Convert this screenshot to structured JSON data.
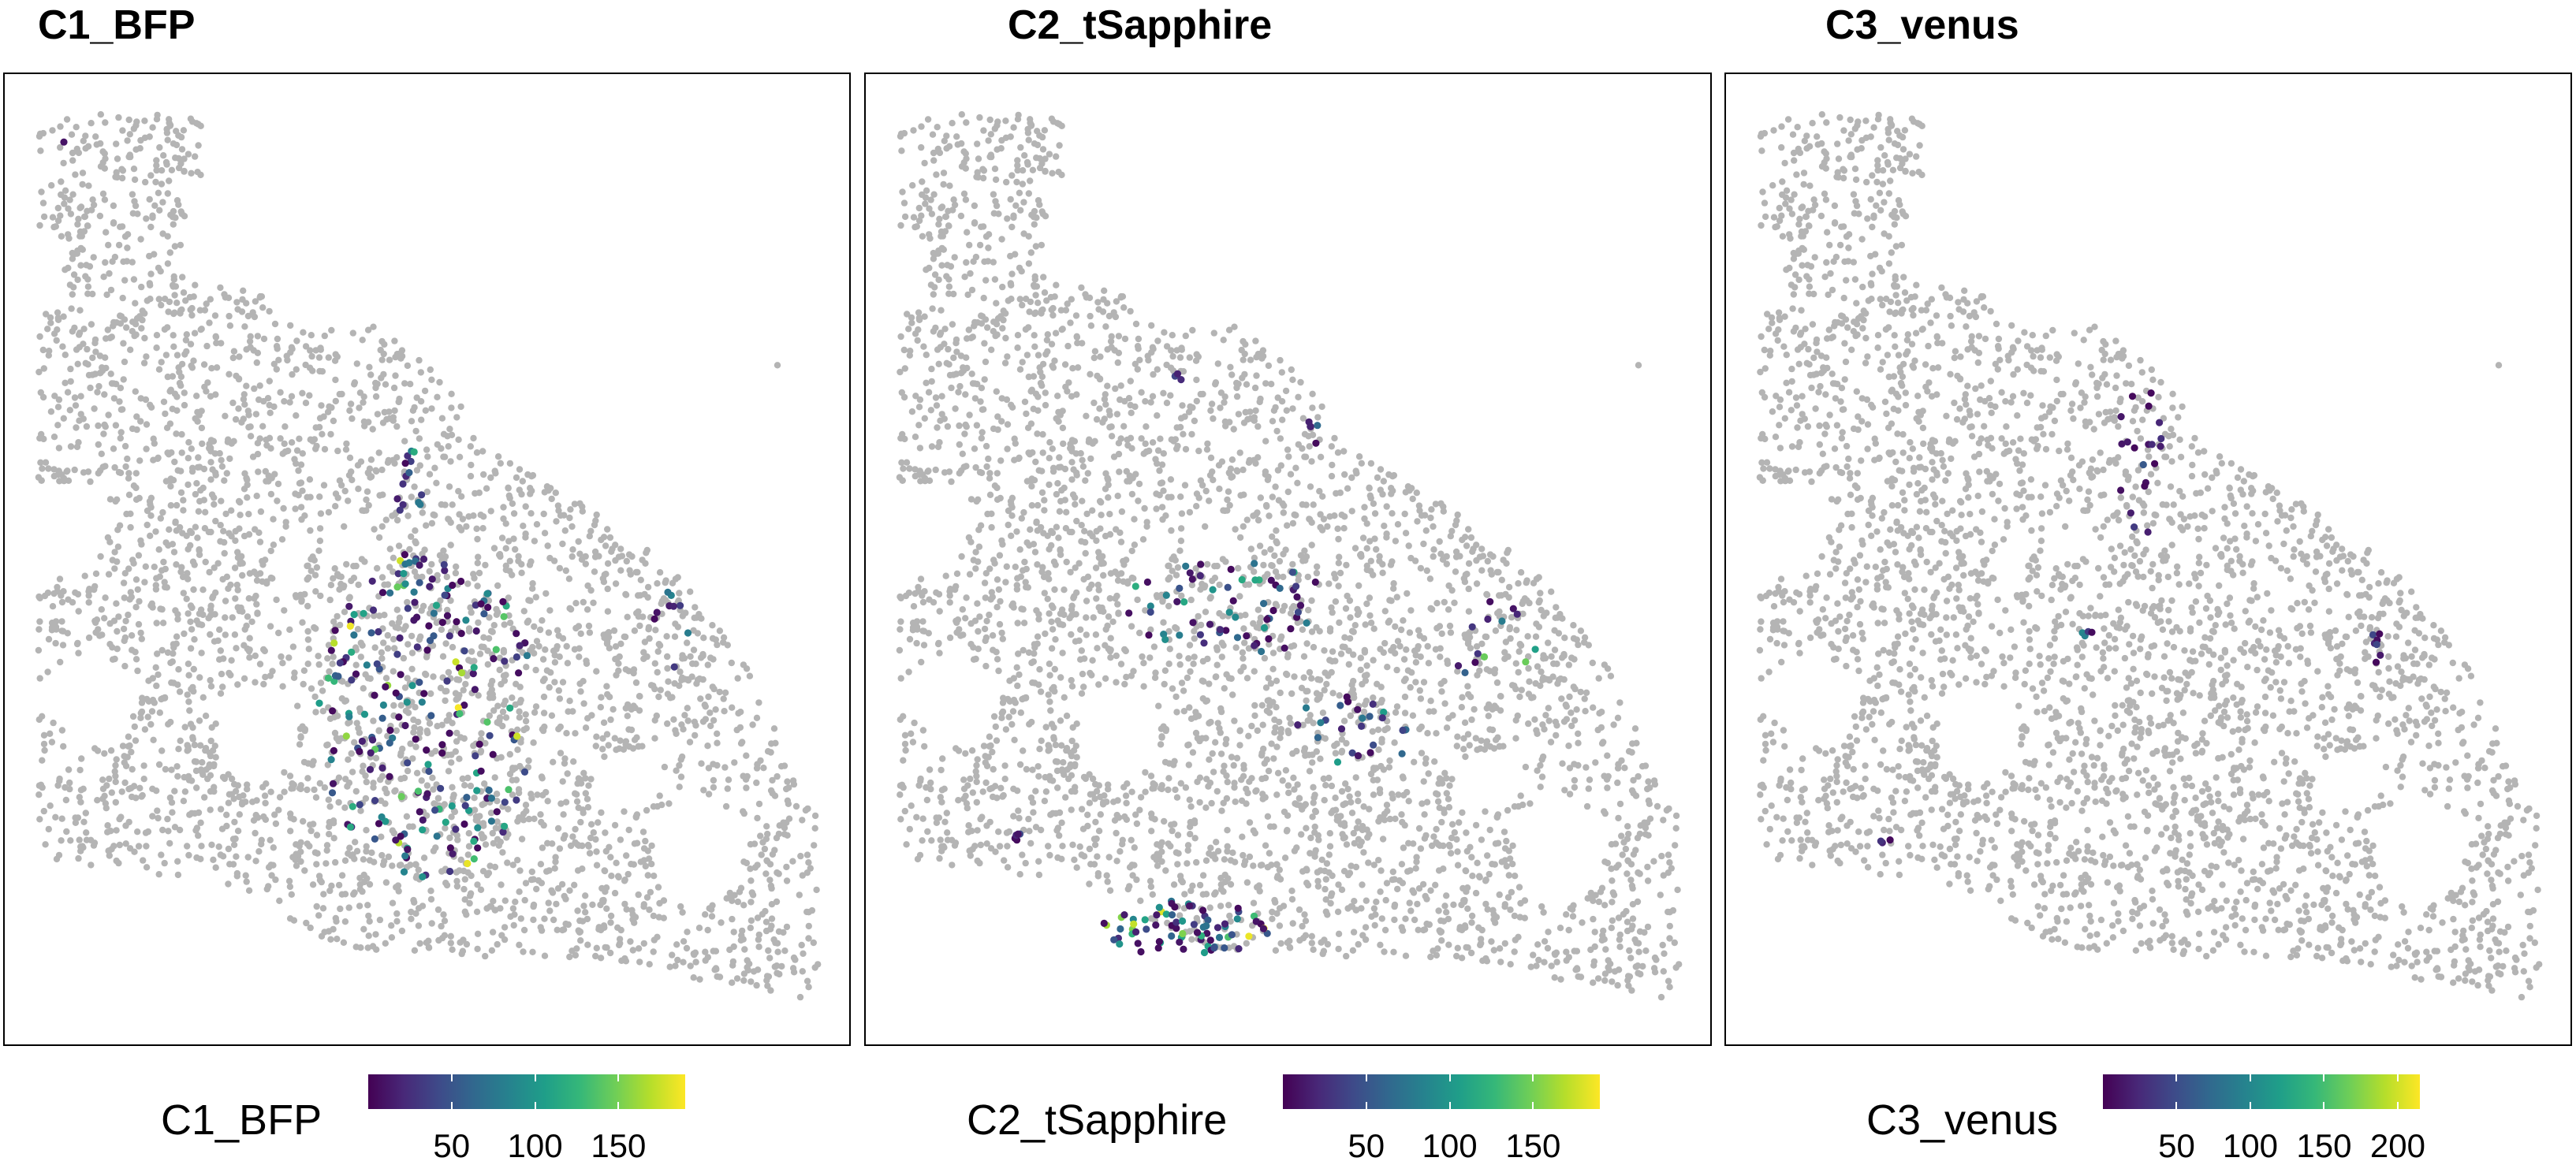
{
  "chart_data": [
    {
      "type": "scatter",
      "title": "C1_BFP",
      "legend": {
        "title": "C1_BFP",
        "position": "bottom",
        "colormap": "viridis",
        "range": [
          0,
          190
        ],
        "ticks": [
          50,
          100,
          150
        ],
        "tick_labels": [
          "50",
          "100",
          "150"
        ]
      },
      "background_points_color": "#b4b4b4",
      "grid": false,
      "hotspots": [
        {
          "cx": 0.5,
          "cy": 0.66,
          "rx": 0.13,
          "ry": 0.17,
          "n": 215,
          "max": 190
        },
        {
          "cx": 0.48,
          "cy": 0.47,
          "rx": 0.02,
          "ry": 0.09,
          "n": 22,
          "max": 150
        },
        {
          "cx": 0.79,
          "cy": 0.58,
          "rx": 0.03,
          "ry": 0.05,
          "n": 9,
          "max": 90
        },
        {
          "cx": 0.07,
          "cy": 0.07,
          "rx": 0.0,
          "ry": 0.0,
          "n": 1,
          "max": 70
        }
      ]
    },
    {
      "type": "scatter",
      "title": "C2_tSapphire",
      "legend": {
        "title": "C2_tSapphire",
        "position": "bottom",
        "colormap": "viridis",
        "range": [
          0,
          190
        ],
        "ticks": [
          50,
          100,
          150
        ],
        "tick_labels": [
          "50",
          "100",
          "150"
        ]
      },
      "background_points_color": "#b4b4b4",
      "grid": false,
      "hotspots": [
        {
          "cx": 0.43,
          "cy": 0.55,
          "rx": 0.13,
          "ry": 0.05,
          "n": 62,
          "max": 120
        },
        {
          "cx": 0.38,
          "cy": 0.88,
          "rx": 0.1,
          "ry": 0.03,
          "n": 75,
          "max": 190
        },
        {
          "cx": 0.58,
          "cy": 0.68,
          "rx": 0.08,
          "ry": 0.04,
          "n": 24,
          "max": 110
        },
        {
          "cx": 0.75,
          "cy": 0.6,
          "rx": 0.05,
          "ry": 0.06,
          "n": 13,
          "max": 190
        },
        {
          "cx": 0.54,
          "cy": 0.37,
          "rx": 0.02,
          "ry": 0.02,
          "n": 5,
          "max": 80
        },
        {
          "cx": 0.37,
          "cy": 0.31,
          "rx": 0.01,
          "ry": 0.01,
          "n": 3,
          "max": 60
        },
        {
          "cx": 0.18,
          "cy": 0.79,
          "rx": 0.01,
          "ry": 0.01,
          "n": 5,
          "max": 150
        }
      ]
    },
    {
      "type": "scatter",
      "title": "C3_venus",
      "legend": {
        "title": "C3_venus",
        "position": "bottom",
        "colormap": "viridis",
        "range": [
          0,
          215
        ],
        "ticks": [
          50,
          100,
          150,
          200
        ],
        "tick_labels": [
          "50",
          "100",
          "150",
          "200"
        ]
      },
      "background_points_color": "#b4b4b4",
      "grid": false,
      "hotspots": [
        {
          "cx": 0.49,
          "cy": 0.4,
          "rx": 0.03,
          "ry": 0.08,
          "n": 20,
          "max": 60
        },
        {
          "cx": 0.43,
          "cy": 0.58,
          "rx": 0.01,
          "ry": 0.01,
          "n": 4,
          "max": 215
        },
        {
          "cx": 0.77,
          "cy": 0.59,
          "rx": 0.01,
          "ry": 0.02,
          "n": 7,
          "max": 50
        },
        {
          "cx": 0.19,
          "cy": 0.79,
          "rx": 0.01,
          "ry": 0.005,
          "n": 3,
          "max": 50
        }
      ]
    }
  ]
}
